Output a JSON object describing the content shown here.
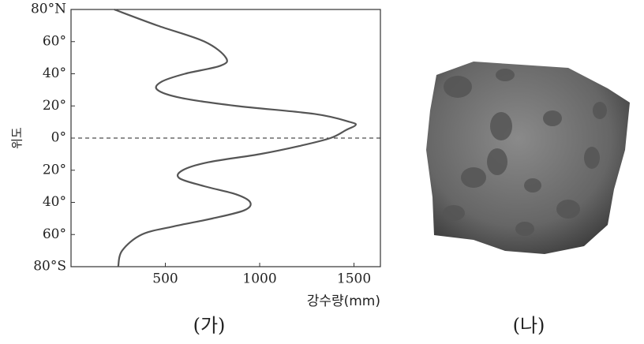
{
  "chart_data": {
    "type": "line",
    "orientation": "horizontal",
    "ylabel": "위도",
    "xlabel": "강수량(mm)",
    "caption": "(가)",
    "latitudes": [
      80,
      70,
      60,
      50,
      45,
      40,
      35,
      30,
      25,
      20,
      15,
      10,
      8,
      5,
      0,
      -5,
      -10,
      -15,
      -20,
      -25,
      -30,
      -35,
      -40,
      -45,
      -50,
      -55,
      -60,
      -70,
      -80
    ],
    "values": [
      229,
      458,
      708,
      821,
      792,
      604,
      479,
      458,
      583,
      875,
      1292,
      1479,
      1508,
      1458,
      1375,
      1208,
      1000,
      729,
      592,
      575,
      708,
      875,
      950,
      917,
      750,
      542,
      375,
      271,
      250
    ],
    "color": "#555555",
    "xlim": [
      0,
      1640
    ],
    "xticks": [
      500,
      1000,
      1500
    ],
    "ylim": [
      -80,
      80
    ],
    "yticks": [
      {
        "value": 80,
        "label": "80°N"
      },
      {
        "value": 60,
        "label": "60°"
      },
      {
        "value": 40,
        "label": "40°"
      },
      {
        "value": 20,
        "label": "20°"
      },
      {
        "value": 0,
        "label": "0°"
      },
      {
        "value": -20,
        "label": "20°"
      },
      {
        "value": -40,
        "label": "40°"
      },
      {
        "value": -60,
        "label": "60°"
      },
      {
        "value": -80,
        "label": "80°S"
      }
    ]
  },
  "photo": {
    "caption": "(나)"
  }
}
